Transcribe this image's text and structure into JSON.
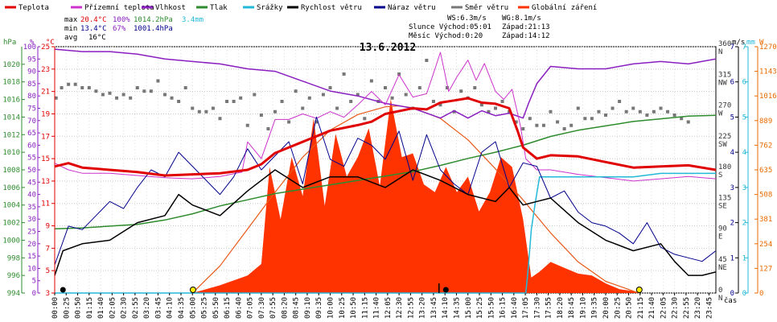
{
  "chart_data": {
    "type": "line",
    "title": "13.6.2012",
    "x_unit_label": "čas",
    "legend": [
      {
        "label": "Teplota",
        "color": "#e00000"
      },
      {
        "label": "Přízemní teplota",
        "color": "#cc33cc"
      },
      {
        "label": "Vlhkost",
        "color": "#8a1fc0"
      },
      {
        "label": "Tlak",
        "color": "#2e8b2e"
      },
      {
        "label": "Srážky",
        "color": "#22b8d8"
      },
      {
        "label": "Rychlost větru",
        "color": "#000000"
      },
      {
        "label": "Náraz větru",
        "color": "#00008b"
      },
      {
        "label": "Směr větru",
        "color": "#777777"
      },
      {
        "label": "Globální záření",
        "color": "#ff3300"
      }
    ],
    "stats": {
      "max": {
        "label": "max",
        "temp": "20.4°C",
        "hum": "100%",
        "press": "1014.2hPa",
        "rain": "3.4mm",
        "temp_color": "#e00000",
        "hum_color": "#8a1fc0",
        "press_color": "#2e8b2e",
        "rain_color": "#22b8d8"
      },
      "min": {
        "label": "min",
        "temp": "13.4°C",
        "hum": "67%",
        "press": "1001.4hPa",
        "temp_color": "#00008b",
        "hum_color": "#8a1fc0",
        "press_color": "#00008b"
      },
      "avg": {
        "label": "avg",
        "temp": "16°C"
      }
    },
    "wind_info": {
      "ws": "WS:6.3m/s",
      "wg": "WG:8.1m/s"
    },
    "sun_info": {
      "sun_rise": "Slunce Východ:05:01",
      "sun_set": "Západ:21:13",
      "moon_rise": "Měsíc  Východ:0:20",
      "moon_set": "Západ:14:12"
    },
    "axes": {
      "pressure": {
        "unit": "hPa",
        "range": [
          994,
          1022
        ],
        "ticks": [
          "994",
          "996",
          "998",
          "1000",
          "1002",
          "1004",
          "1006",
          "1008",
          "1010",
          "1012",
          "1014",
          "1016",
          "1018",
          "1020"
        ]
      },
      "humidity": {
        "unit": "%",
        "range": [
          0,
          100
        ],
        "ticks": [
          "0",
          "5",
          "10",
          "15",
          "20",
          "25",
          "30",
          "35",
          "40",
          "45",
          "50",
          "55",
          "60",
          "65",
          "70",
          "75",
          "80",
          "85",
          "90",
          "95",
          "100"
        ]
      },
      "temperature": {
        "unit": "°C",
        "range": [
          3,
          25
        ],
        "ticks": [
          "3",
          "5",
          "7",
          "9",
          "11",
          "13",
          "15",
          "17",
          "19",
          "21",
          "23",
          "25"
        ]
      },
      "wind_dir": {
        "ticks": [
          {
            "v": "0",
            "n": "N"
          },
          {
            "v": "45",
            "n": "NE"
          },
          {
            "v": "90",
            "n": "E"
          },
          {
            "v": "135",
            "n": "SE"
          },
          {
            "v": "180",
            "n": "S"
          },
          {
            "v": "225",
            "n": "SW"
          },
          {
            "v": "270",
            "n": "W"
          },
          {
            "v": "315",
            "n": "NW"
          },
          {
            "v": "360",
            "n": "N"
          }
        ]
      },
      "wind_speed": {
        "unit": "m/s",
        "range": [
          0,
          7
        ],
        "ticks": [
          "0",
          "1",
          "2",
          "3",
          "4",
          "5",
          "6",
          "7"
        ]
      },
      "rain": {
        "unit": "mm",
        "range": [
          0,
          7
        ],
        "ticks": [
          "0",
          "1",
          "2",
          "3",
          "4",
          "5",
          "6",
          "7"
        ]
      },
      "radiation": {
        "unit": "W",
        "range": [
          0,
          1270
        ],
        "ticks": [
          "0",
          "127",
          "254",
          "381",
          "508",
          "635",
          "762",
          "889",
          "1016",
          "1143",
          "1270"
        ]
      }
    },
    "x_ticks": [
      "00:00",
      "00:25",
      "00:50",
      "01:15",
      "01:40",
      "02:05",
      "02:30",
      "02:55",
      "03:20",
      "03:45",
      "04:10",
      "04:35",
      "05:00",
      "05:25",
      "05:50",
      "06:15",
      "06:40",
      "07:05",
      "07:30",
      "07:55",
      "08:20",
      "08:45",
      "09:10",
      "09:35",
      "10:00",
      "10:25",
      "10:50",
      "11:15",
      "11:40",
      "12:05",
      "12:30",
      "12:55",
      "13:20",
      "13:45",
      "14:10",
      "14:35",
      "15:00",
      "15:25",
      "15:50",
      "16:15",
      "16:40",
      "17:05",
      "17:30",
      "17:55",
      "18:20",
      "18:45",
      "19:10",
      "19:35",
      "20:00",
      "20:25",
      "20:50",
      "21:15",
      "21:40",
      "22:05",
      "22:30",
      "22:55",
      "23:20",
      "23:45"
    ],
    "series": {
      "temperature": {
        "x": [
          0,
          0.5,
          1,
          2,
          3,
          4,
          5,
          6,
          7,
          7.5,
          8,
          9,
          9.5,
          10,
          11,
          11.5,
          12,
          13,
          13.5,
          14,
          14.5,
          15,
          15.5,
          16,
          16.5,
          16.8,
          17,
          17.5,
          18,
          19,
          20,
          21,
          22,
          23,
          24
        ],
        "y": [
          14.3,
          14.6,
          14.2,
          14.0,
          13.8,
          13.5,
          13.6,
          13.7,
          14.0,
          14.5,
          15.5,
          16.5,
          17.0,
          17.5,
          18.0,
          18.3,
          19.0,
          19.5,
          19.4,
          20.0,
          20.2,
          20.4,
          20.0,
          19.9,
          19.5,
          17.5,
          16.0,
          15.0,
          15.3,
          15.2,
          14.7,
          14.2,
          14.3,
          14.4,
          14.0
        ]
      },
      "ground_temperature": {
        "x": [
          0,
          0.5,
          1,
          2,
          3,
          4,
          5,
          6,
          6.8,
          7.0,
          7.5,
          8,
          8.5,
          9,
          9.5,
          10,
          10.5,
          11,
          11.5,
          12,
          12.5,
          13,
          13.5,
          13.8,
          14,
          14.3,
          14.6,
          15,
          15.3,
          15.6,
          16,
          16.3,
          16.6,
          16.9,
          17.1,
          17.5,
          18,
          19,
          20,
          21,
          22,
          23,
          24
        ],
        "y": [
          14.6,
          14.0,
          13.7,
          13.7,
          13.5,
          13.3,
          13.2,
          13.4,
          13.8,
          16.5,
          15.0,
          18.5,
          18.5,
          19.0,
          18.6,
          19.2,
          18.7,
          19.8,
          21.0,
          19.8,
          22.5,
          20.5,
          20.8,
          23.0,
          24.5,
          21.0,
          22.3,
          23.8,
          22.0,
          23.5,
          21.0,
          20.3,
          21.2,
          18.0,
          15.0,
          14.0,
          14.0,
          13.6,
          13.3,
          13.0,
          13.2,
          13.4,
          13.2
        ]
      },
      "humidity": {
        "x": [
          0,
          1,
          2,
          3,
          4,
          5,
          6,
          7,
          8,
          9,
          10,
          11,
          12,
          13,
          13.5,
          14,
          14.5,
          15,
          15.5,
          16,
          16.5,
          17,
          17.2,
          17.5,
          18,
          19,
          20,
          21,
          22,
          23,
          24
        ],
        "y": [
          99,
          98,
          98,
          97,
          95,
          94,
          93,
          91,
          90,
          86,
          82,
          80,
          77,
          75,
          73,
          71,
          74,
          71,
          74,
          72,
          73,
          71,
          77,
          85,
          92,
          91,
          91,
          93,
          94,
          93,
          95
        ]
      },
      "pressure": {
        "x": [
          0,
          1,
          2,
          3,
          4,
          5,
          6,
          7,
          8,
          9,
          10,
          11,
          12,
          13,
          14,
          15,
          16,
          17,
          18,
          19,
          20,
          21,
          22,
          23,
          24
        ],
        "y": [
          1001.3,
          1001.4,
          1001.6,
          1001.8,
          1002.3,
          1003.0,
          1003.9,
          1004.6,
          1005.3,
          1005.8,
          1006.3,
          1006.8,
          1007.3,
          1007.8,
          1008.5,
          1009.3,
          1010.0,
          1010.8,
          1011.8,
          1012.5,
          1013.0,
          1013.5,
          1013.8,
          1014.1,
          1014.2
        ]
      },
      "rain": {
        "x": [
          0,
          17.1,
          17.2,
          17.3,
          17.45,
          17.6,
          18,
          21,
          22,
          23,
          24
        ],
        "y": [
          0,
          0,
          0.8,
          1.8,
          2.6,
          3.3,
          3.3,
          3.3,
          3.4,
          3.4,
          3.4
        ]
      },
      "wind_speed": {
        "x": [
          0,
          0.3,
          1,
          2,
          3,
          4,
          4.5,
          5,
          6,
          7,
          8,
          9,
          10,
          11,
          12,
          13,
          14,
          15,
          16,
          16.5,
          17,
          17.5,
          18,
          19,
          20,
          21,
          22,
          22.5,
          23,
          23.5,
          24
        ],
        "y": [
          0.5,
          1.2,
          1.4,
          1.5,
          2.0,
          2.2,
          2.8,
          2.5,
          2.2,
          2.9,
          3.5,
          3.0,
          3.3,
          3.3,
          3.0,
          3.5,
          3.2,
          2.8,
          2.6,
          3.0,
          2.5,
          2.6,
          2.7,
          2.0,
          1.5,
          1.2,
          1.4,
          0.9,
          0.5,
          0.5,
          0.6
        ]
      },
      "wind_gust": {
        "x": [
          0,
          0.5,
          1,
          1.5,
          2,
          2.5,
          3,
          3.5,
          4,
          4.5,
          5,
          5.5,
          6,
          6.5,
          7,
          7.5,
          8,
          8.5,
          9,
          9.5,
          10,
          10.5,
          11,
          11.5,
          12,
          12.5,
          13,
          13.5,
          14,
          14.5,
          15,
          15.5,
          16,
          16.5,
          17,
          17.5,
          18,
          18.5,
          19,
          19.5,
          20,
          20.5,
          21,
          21.5,
          22,
          22.5,
          23,
          23.5,
          24
        ],
        "y": [
          0.8,
          1.9,
          1.8,
          2.2,
          2.6,
          2.4,
          3.0,
          3.5,
          3.3,
          4.0,
          3.6,
          3.2,
          2.8,
          3.3,
          4.1,
          3.5,
          3.9,
          4.3,
          3.1,
          5.0,
          3.8,
          3.6,
          4.4,
          4.2,
          3.8,
          4.6,
          3.2,
          4.5,
          3.5,
          3.1,
          2.8,
          4.0,
          4.3,
          3.0,
          3.7,
          3.6,
          2.7,
          2.9,
          2.3,
          2.0,
          1.9,
          1.7,
          1.4,
          2.0,
          1.3,
          1.1,
          1.0,
          0.9,
          1.2
        ]
      },
      "radiation": {
        "x": [
          0,
          5.0,
          6,
          7,
          7.5,
          7.8,
          8.2,
          8.6,
          9.0,
          9.4,
          9.8,
          10.2,
          10.6,
          11.0,
          11.4,
          11.8,
          12.2,
          12.6,
          13.0,
          13.4,
          13.8,
          14.2,
          14.6,
          15.0,
          15.4,
          15.8,
          16.2,
          16.6,
          17.0,
          17.3,
          17.6,
          18,
          18.5,
          19,
          19.5,
          20,
          20.5,
          21,
          21.2,
          24
        ],
        "y": [
          0,
          0,
          40,
          90,
          150,
          650,
          380,
          700,
          500,
          900,
          450,
          820,
          600,
          700,
          850,
          550,
          1000,
          700,
          720,
          560,
          520,
          650,
          520,
          600,
          420,
          520,
          700,
          650,
          380,
          80,
          110,
          160,
          130,
          100,
          90,
          50,
          20,
          10,
          0,
          0
        ]
      },
      "radiation_clear_sky": {
        "x": [
          5.0,
          6,
          7,
          8,
          9,
          10,
          11,
          12,
          12.5,
          13,
          14,
          15,
          16,
          17,
          18,
          19,
          20,
          21,
          21.2
        ],
        "y": [
          0,
          140,
          330,
          520,
          700,
          840,
          920,
          960,
          965,
          955,
          900,
          790,
          640,
          480,
          310,
          160,
          60,
          10,
          0
        ]
      },
      "wind_direction": {
        "x": [
          0.05,
          0.25,
          0.5,
          0.75,
          1.0,
          1.25,
          1.5,
          1.75,
          2.0,
          2.25,
          2.5,
          2.75,
          3.0,
          3.25,
          3.5,
          3.75,
          4.0,
          4.25,
          4.5,
          4.75,
          5.0,
          5.25,
          5.5,
          5.75,
          6.0,
          6.25,
          6.5,
          6.75,
          7.0,
          7.25,
          7.5,
          7.75,
          8.0,
          8.25,
          8.5,
          8.75,
          9.0,
          9.25,
          9.5,
          9.75,
          10.0,
          10.25,
          10.5,
          10.75,
          11.0,
          11.25,
          11.5,
          11.75,
          12.0,
          12.25,
          12.5,
          12.75,
          13.0,
          13.25,
          13.5,
          13.75,
          14.0,
          14.25,
          14.5,
          14.75,
          15.0,
          15.25,
          15.5,
          15.75,
          16.0,
          16.25,
          16.5,
          16.75,
          17.0,
          17.25,
          17.5,
          17.75,
          18.0,
          18.25,
          18.5,
          18.75,
          19.0,
          19.25,
          19.5,
          19.75,
          20.0,
          20.25,
          20.5,
          20.75,
          21.0,
          21.25,
          21.5,
          21.75,
          22.0,
          22.25,
          22.5,
          22.75,
          23.0
        ],
        "y": [
          285,
          300,
          305,
          305,
          300,
          300,
          295,
          290,
          292,
          285,
          290,
          285,
          300,
          295,
          295,
          310,
          290,
          285,
          280,
          300,
          270,
          265,
          265,
          270,
          255,
          280,
          280,
          285,
          245,
          290,
          260,
          240,
          265,
          280,
          250,
          295,
          270,
          285,
          250,
          290,
          300,
          270,
          320,
          280,
          290,
          255,
          310,
          280,
          300,
          285,
          320,
          290,
          270,
          300,
          340,
          280,
          275,
          300,
          265,
          295,
          285,
          300,
          275,
          265,
          270,
          280,
          265,
          250,
          240,
          255,
          245,
          245,
          265,
          250,
          240,
          245,
          270,
          255,
          255,
          265,
          260,
          270,
          280,
          265,
          270,
          265,
          260,
          265,
          270,
          265,
          260,
          255,
          250
        ]
      }
    }
  }
}
